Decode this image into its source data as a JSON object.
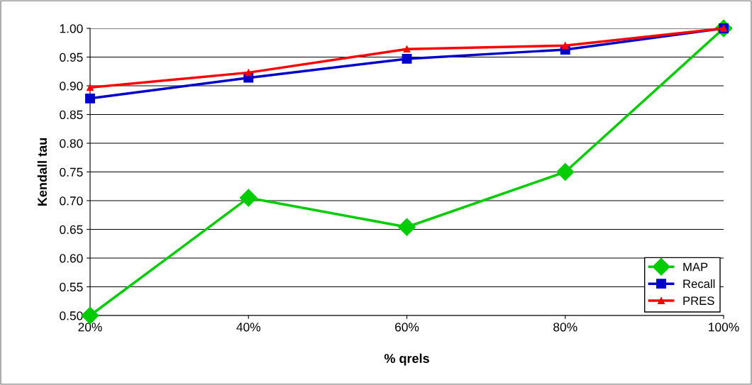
{
  "chart_data": {
    "type": "line",
    "xlabel": "% qrels",
    "ylabel": "Kendall tau",
    "categories": [
      "20%",
      "40%",
      "60%",
      "80%",
      "100%"
    ],
    "series": [
      {
        "name": "MAP",
        "color": "#00cc00",
        "marker": "diamond",
        "values": [
          0.5,
          0.705,
          0.654,
          0.75,
          1.0
        ]
      },
      {
        "name": "Recall",
        "color": "#0000cc",
        "marker": "square",
        "values": [
          0.878,
          0.914,
          0.947,
          0.963,
          1.0
        ]
      },
      {
        "name": "PRES",
        "color": "#ff0000",
        "marker": "triangle",
        "values": [
          0.897,
          0.923,
          0.964,
          0.97,
          1.0
        ]
      }
    ],
    "ylim": [
      0.5,
      1.0
    ],
    "yticks": [
      {
        "value": 0.5,
        "label": "0.50"
      },
      {
        "value": 0.55,
        "label": "0.55"
      },
      {
        "value": 0.6,
        "label": "0.60"
      },
      {
        "value": 0.65,
        "label": "0.65"
      },
      {
        "value": 0.7,
        "label": "0.70"
      },
      {
        "value": 0.75,
        "label": "0.75"
      },
      {
        "value": 0.8,
        "label": "0.80"
      },
      {
        "value": 0.85,
        "label": "0.85"
      },
      {
        "value": 0.9,
        "label": "0.90"
      },
      {
        "value": 0.95,
        "label": "0.95"
      },
      {
        "value": 1.0,
        "label": "1.00"
      }
    ],
    "grid": "y",
    "legend": "bottom right",
    "line_style": "solid"
  }
}
